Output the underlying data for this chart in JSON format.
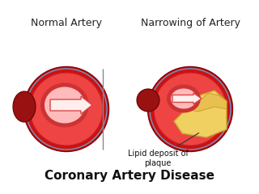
{
  "bg_color": "#ffffff",
  "title": "Coronary Artery Disease",
  "title_fontsize": 11,
  "title_bold": true,
  "label_left": "Normal Artery",
  "label_right": "Narrowing of Artery",
  "label_fontsize": 9,
  "annotation": "Lipid deposit of\nplaque",
  "annotation_fontsize": 7,
  "artery_outer_color": "#cc1111",
  "artery_inner_color": "#ee4444",
  "artery_lumen_color": "#ffaaaa",
  "artery_dark_red": "#991111",
  "plaque_color": "#f0d060",
  "plaque_edge": "#c8a830",
  "arrow_color": "#ffcccc",
  "arrow_edge": "#cc4444",
  "highlight_color": "#ff8888"
}
